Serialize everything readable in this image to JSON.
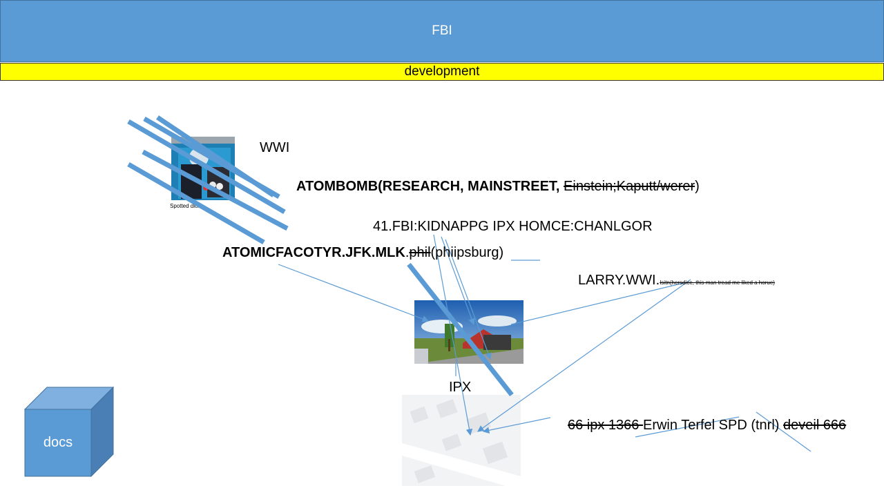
{
  "header": {
    "title": "FBI"
  },
  "subheader": {
    "label": "development"
  },
  "texts": {
    "wwi": "WWI",
    "atombomb_bold": "ATOMBOMB(RESEARCH, MAINSTREET,",
    "atombomb_strike": "Einstein;Kaputt/werer",
    "atombomb_close": ")",
    "photo_caption": "Spotted dick",
    "kidnap": "41.FBI:KIDNAPPG IPX HOMCE:CHANLGOR",
    "atomicfactory_bold": "ATOMICFACOTYR.JFK.MLK",
    "atomicfactory_dot": ".",
    "atomicfactory_strike": "phil",
    "atomicfactory_rest": "(phiipsburg)",
    "larry_main": "LARRY.WWI.",
    "larry_small": "Isitn(hersdice, this man tread me liked a horue)",
    "ipx": "IPX",
    "erwin_strike1": "66 ipx 1366 ",
    "erwin_main": "Erwin Terfel SPD (tnrl) ",
    "erwin_strike2": "deveil 666",
    "docs": "docs"
  },
  "colors": {
    "accent": "#5b9bd5",
    "accent_dark": "#41719c",
    "highlight": "#ffff00"
  },
  "icons": {
    "portrait": "portrait-photo",
    "street": "street-view-photo",
    "map": "map-thumbnail",
    "cube": "cube-shape"
  }
}
